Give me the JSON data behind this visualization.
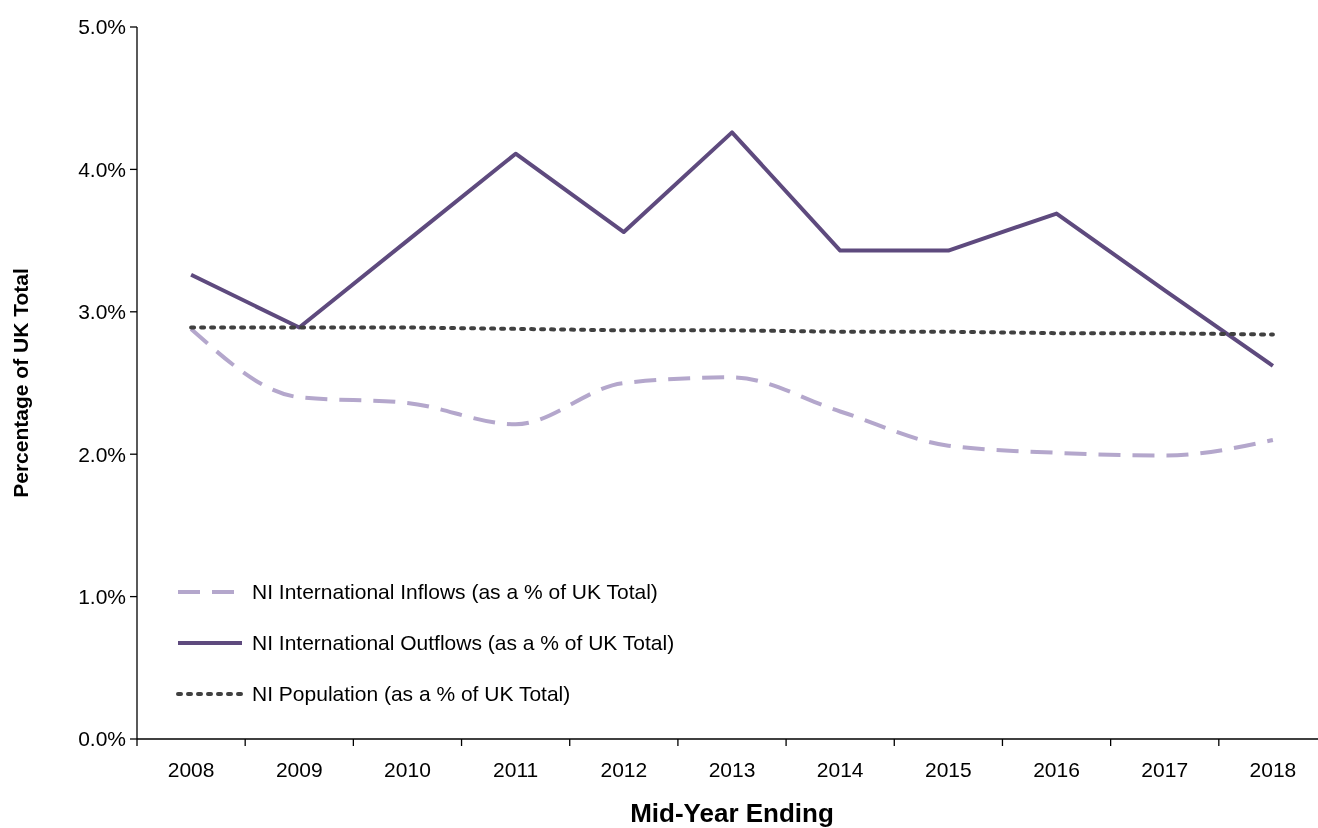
{
  "chart_data": {
    "type": "line",
    "xlabel": "Mid-Year Ending",
    "ylabel": "Percentage of UK Total",
    "categories": [
      "2008",
      "2009",
      "2010",
      "2011",
      "2012",
      "2013",
      "2014",
      "2015",
      "2016",
      "2017",
      "2018"
    ],
    "series": [
      {
        "name": "NI International Inflows (as a % of UK Total)",
        "color": "#b4a7cc",
        "line_style": "dashed",
        "values": [
          2.88,
          2.4,
          2.36,
          2.21,
          2.5,
          2.54,
          2.3,
          2.06,
          2.01,
          1.99,
          2.1
        ]
      },
      {
        "name": "NI International Outflows (as a % of UK Total)",
        "color": "#5e4a7e",
        "line_style": "solid",
        "values": [
          3.26,
          2.89,
          3.5,
          4.11,
          3.56,
          4.26,
          3.43,
          3.43,
          3.69,
          3.15,
          2.62
        ]
      },
      {
        "name": "NI Population (as a % of UK Total)",
        "color": "#404040",
        "line_style": "dotted",
        "values": [
          2.89,
          2.89,
          2.89,
          2.88,
          2.87,
          2.87,
          2.86,
          2.86,
          2.85,
          2.85,
          2.84
        ]
      }
    ],
    "ylim": [
      0,
      5
    ],
    "yticks": [
      {
        "value": 0,
        "label": "0.0%"
      },
      {
        "value": 1,
        "label": "1.0%"
      },
      {
        "value": 2,
        "label": "2.0%"
      },
      {
        "value": 3,
        "label": "3.0%"
      },
      {
        "value": 4,
        "label": "4.0%"
      },
      {
        "value": 5,
        "label": "5.0%"
      }
    ],
    "grid": false,
    "legend": "bottom left",
    "marker": "none"
  }
}
